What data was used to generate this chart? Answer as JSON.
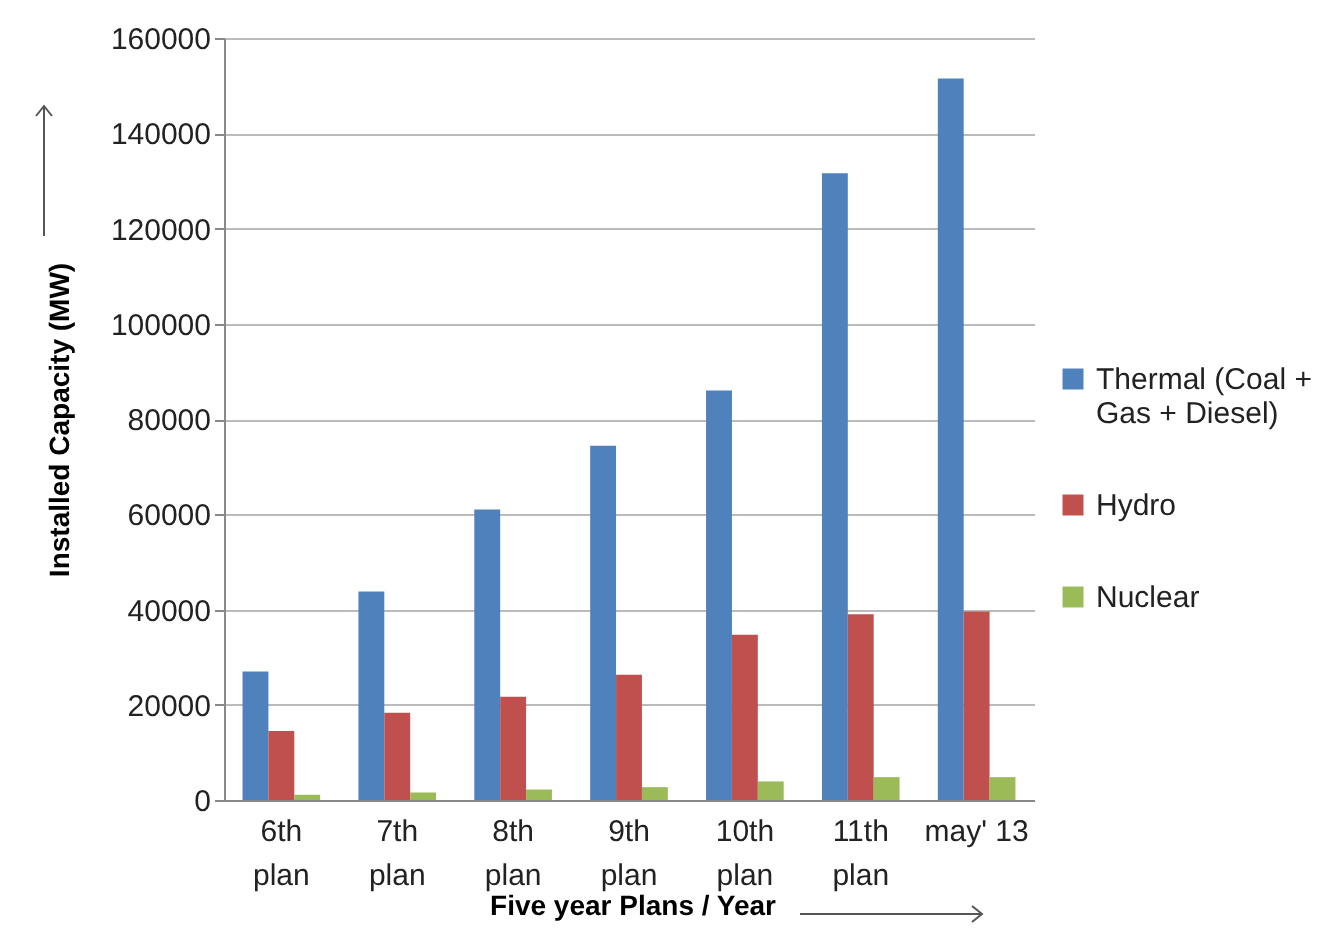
{
  "chart_data": {
    "type": "bar",
    "xlabel": "Five year Plans / Year",
    "ylabel": "Installed Capacity (MW)",
    "categories": [
      "6th plan",
      "7th plan",
      "8th plan",
      "9th plan",
      "10th plan",
      "11th plan",
      "may' 13"
    ],
    "series": [
      {
        "name": "Thermal (Coal + Gas + Diesel)",
        "color": "#4f81bd",
        "values": [
          27000,
          43800,
          61000,
          74400,
          86000,
          131600,
          151500
        ]
      },
      {
        "name": "Hydro",
        "color": "#c0504d",
        "values": [
          14500,
          18300,
          21700,
          26300,
          34700,
          39000,
          39600
        ]
      },
      {
        "name": "Nuclear",
        "color": "#9bbb59",
        "values": [
          1100,
          1600,
          2200,
          2700,
          3900,
          4800,
          4800
        ]
      }
    ],
    "ylim": [
      0,
      160000
    ],
    "yticks": [
      0,
      20000,
      40000,
      60000,
      80000,
      100000,
      120000,
      140000,
      160000
    ],
    "grid": "y",
    "legend": "right"
  }
}
